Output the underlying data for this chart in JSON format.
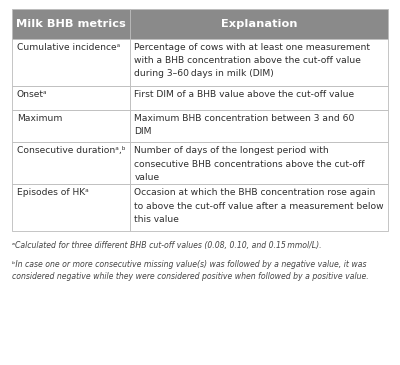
{
  "header": [
    "Milk BHB metrics",
    "Explanation"
  ],
  "header_bg": "#8a8a8a",
  "header_text_color": "#ffffff",
  "row_bg": "#ffffff",
  "row_border_color": "#bbbbbb",
  "text_color": "#2e2e2e",
  "footnote_text_color": "#444444",
  "rows": [
    {
      "metric": "Cumulative incidenceᵃ",
      "explanation": "Percentage of cows with at least one measurement\nwith a BHB concentration above the cut-off value\nduring 3–60 days in milk (DIM)"
    },
    {
      "metric": "Onsetᵃ",
      "explanation": "First DIM of a BHB value above the cut-off value"
    },
    {
      "metric": "Maximum",
      "explanation": "Maximum BHB concentration between 3 and 60\nDIM"
    },
    {
      "metric": "Consecutive durationᵃ,ᵇ",
      "explanation": "Number of days of the longest period with\nconsecutive BHB concentrations above the cut-off\nvalue"
    },
    {
      "metric": "Episodes of HKᵃ",
      "explanation": "Occasion at which the BHB concentration rose again\nto above the cut-off value after a measurement below\nthis value"
    }
  ],
  "footnote_a": "ᵃCalculated for three different BHB cut-off values (0.08, 0.10, and 0.15 mmol/L).",
  "footnote_b": "ᵇIn case one or more consecutive missing value(s) was followed by a negative value, it was\nconsidered negative while they were considered positive when followed by a positive value.",
  "col_split": 0.315,
  "figsize": [
    4.0,
    3.65
  ],
  "dpi": 100
}
